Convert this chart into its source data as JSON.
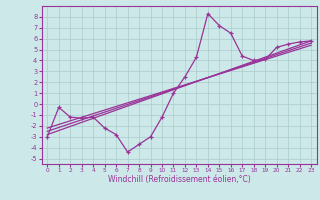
{
  "xlabel": "Windchill (Refroidissement éolien,°C)",
  "background_color": "#cce8e8",
  "grid_color": "#aacccc",
  "line_color": "#993399",
  "xlim": [
    -0.5,
    23.5
  ],
  "ylim": [
    -5.5,
    9.0
  ],
  "xticks": [
    0,
    1,
    2,
    3,
    4,
    5,
    6,
    7,
    8,
    9,
    10,
    11,
    12,
    13,
    14,
    15,
    16,
    17,
    18,
    19,
    20,
    21,
    22,
    23
  ],
  "yticks": [
    -5,
    -4,
    -3,
    -2,
    -1,
    0,
    1,
    2,
    3,
    4,
    5,
    6,
    7,
    8
  ],
  "data_x": [
    0,
    1,
    2,
    3,
    4,
    5,
    6,
    7,
    8,
    9,
    10,
    11,
    12,
    13,
    14,
    15,
    16,
    17,
    18,
    19,
    20,
    21,
    22,
    23
  ],
  "data_y": [
    -3.0,
    -0.3,
    -1.2,
    -1.3,
    -1.2,
    -2.2,
    -2.8,
    -4.4,
    -3.7,
    -3.0,
    -1.2,
    1.0,
    2.5,
    4.3,
    8.3,
    7.2,
    6.5,
    4.4,
    4.0,
    4.1,
    5.2,
    5.5,
    5.7,
    5.8
  ],
  "trend1_x": [
    0,
    23
  ],
  "trend1_y": [
    -2.8,
    5.8
  ],
  "trend2_x": [
    0,
    23
  ],
  "trend2_y": [
    -2.5,
    5.6
  ],
  "trend3_x": [
    0,
    23
  ],
  "trend3_y": [
    -2.2,
    5.4
  ]
}
